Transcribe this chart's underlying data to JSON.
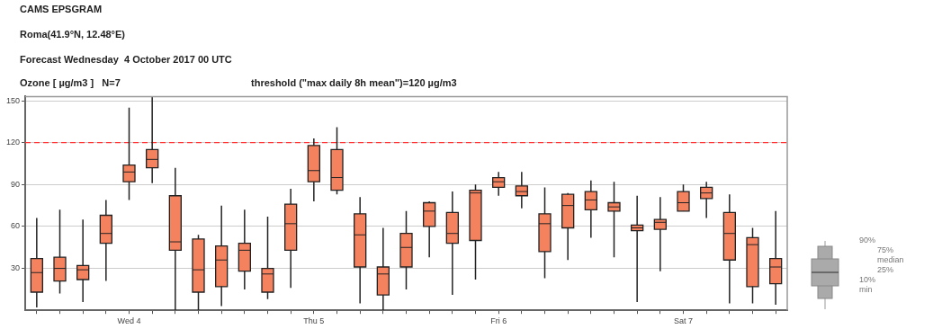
{
  "chart_data": {
    "type": "box",
    "title": "CAMS EPSGRAM",
    "subtitle": "Roma(41.9°N, 12.48°E)",
    "ylabel": "Ozone [ µg/m3 ]   N=7",
    "annotations": [
      "Forecast Wednesday  4 October 2017 00 UTC",
      "threshold (\"max daily 8h mean\")=120 µg/m3",
      "90%",
      "75%",
      "median",
      "25%",
      "10%",
      "min"
    ],
    "categories": [
      null,
      null,
      null,
      null,
      "Wed 4",
      null,
      null,
      null,
      null,
      null,
      null,
      null,
      "Thu 5",
      null,
      null,
      null,
      null,
      null,
      null,
      null,
      "Fri 6",
      null,
      null,
      null,
      null,
      null,
      null,
      null,
      "Sat 7",
      null,
      null,
      null,
      null
    ],
    "ylim": [
      0,
      153
    ],
    "yticks": [
      30,
      60,
      90,
      120,
      150
    ],
    "grid": "y",
    "ref_lines": [
      {
        "axis": "y",
        "value": 120,
        "color": "#ff3333",
        "line_style": "dashed"
      }
    ],
    "series": [
      {
        "color": "#f4825f",
        "boxes": [
          {
            "low": 2,
            "q1": 13,
            "median": 27,
            "q3": 37,
            "high": 66
          },
          {
            "low": 12,
            "q1": 21,
            "median": 30,
            "q3": 38,
            "high": 72
          },
          {
            "low": 6,
            "q1": 22,
            "median": 29,
            "q3": 32,
            "high": 65
          },
          {
            "low": 21,
            "q1": 48,
            "median": 55,
            "q3": 68,
            "high": 79
          },
          {
            "low": 79,
            "q1": 92,
            "median": 99,
            "q3": 104,
            "high": 145
          },
          {
            "low": 91,
            "q1": 102,
            "median": 108,
            "q3": 115,
            "high": 153
          },
          {
            "low": 0,
            "q1": 43,
            "median": 49,
            "q3": 82,
            "high": 102
          },
          {
            "low": 0,
            "q1": 13,
            "median": 29,
            "q3": 51,
            "high": 54
          },
          {
            "low": 3,
            "q1": 17,
            "median": 36,
            "q3": 46,
            "high": 75
          },
          {
            "low": 15,
            "q1": 28,
            "median": 43,
            "q3": 48,
            "high": 72
          },
          {
            "low": 8,
            "q1": 13,
            "median": 26,
            "q3": 30,
            "high": 67
          },
          {
            "low": 16,
            "q1": 43,
            "median": 62,
            "q3": 76,
            "high": 87
          },
          {
            "low": 78,
            "q1": 92,
            "median": 100,
            "q3": 118,
            "high": 123
          },
          {
            "low": 83,
            "q1": 86,
            "median": 95,
            "q3": 115,
            "high": 131
          },
          {
            "low": 5,
            "q1": 31,
            "median": 54,
            "q3": 69,
            "high": 81
          },
          {
            "low": 0,
            "q1": 11,
            "median": 26,
            "q3": 31,
            "high": 59
          },
          {
            "low": 15,
            "q1": 31,
            "median": 45,
            "q3": 55,
            "high": 71
          },
          {
            "low": 38,
            "q1": 60,
            "median": 71,
            "q3": 77,
            "high": 78
          },
          {
            "low": 11,
            "q1": 48,
            "median": 55,
            "q3": 70,
            "high": 85
          },
          {
            "low": 22,
            "q1": 50,
            "median": 84,
            "q3": 86,
            "high": 90
          },
          {
            "low": 82,
            "q1": 88,
            "median": 92,
            "q3": 95,
            "high": 99
          },
          {
            "low": 73,
            "q1": 82,
            "median": 85,
            "q3": 89,
            "high": 99
          },
          {
            "low": 23,
            "q1": 42,
            "median": 62,
            "q3": 69,
            "high": 88
          },
          {
            "low": 36,
            "q1": 59,
            "median": 75,
            "q3": 83,
            "high": 84
          },
          {
            "low": 52,
            "q1": 72,
            "median": 79,
            "q3": 85,
            "high": 93
          },
          {
            "low": 38,
            "q1": 71,
            "median": 74,
            "q3": 77,
            "high": 92
          },
          {
            "low": 6,
            "q1": 57,
            "median": 59,
            "q3": 61,
            "high": 82
          },
          {
            "low": 28,
            "q1": 58,
            "median": 63,
            "q3": 65,
            "high": 81
          },
          {
            "low": 71,
            "q1": 71,
            "median": 77,
            "q3": 85,
            "high": 90
          },
          {
            "low": 66,
            "q1": 80,
            "median": 84,
            "q3": 88,
            "high": 92
          },
          {
            "low": 5,
            "q1": 36,
            "median": 55,
            "q3": 70,
            "high": 83
          },
          {
            "low": 5,
            "q1": 17,
            "median": 47,
            "q3": 52,
            "high": 59
          },
          {
            "low": 4,
            "q1": 19,
            "median": 31,
            "q3": 37,
            "high": 71
          }
        ]
      }
    ]
  }
}
